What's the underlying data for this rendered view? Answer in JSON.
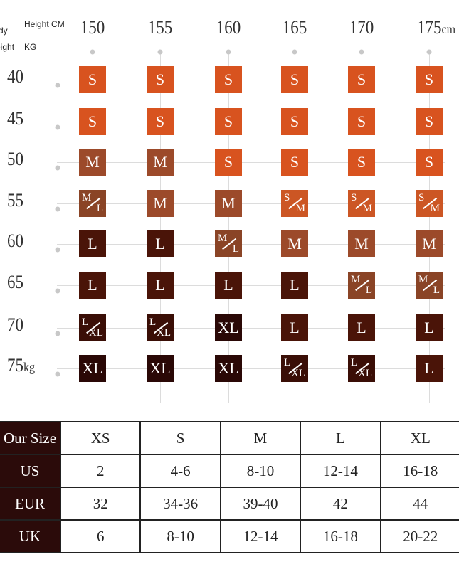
{
  "corner": {
    "body": "dy",
    "weight": "eight",
    "height_cm": "Height CM",
    "weight_kg": "KG"
  },
  "heights": [
    {
      "value": "150",
      "unit": ""
    },
    {
      "value": "155",
      "unit": ""
    },
    {
      "value": "160",
      "unit": ""
    },
    {
      "value": "165",
      "unit": ""
    },
    {
      "value": "170",
      "unit": ""
    },
    {
      "value": "175",
      "unit": "cm"
    }
  ],
  "weights": [
    {
      "value": "40",
      "unit": ""
    },
    {
      "value": "45",
      "unit": ""
    },
    {
      "value": "50",
      "unit": ""
    },
    {
      "value": "55",
      "unit": ""
    },
    {
      "value": "60",
      "unit": ""
    },
    {
      "value": "65",
      "unit": ""
    },
    {
      "value": "70",
      "unit": ""
    },
    {
      "value": "75",
      "unit": "kg"
    }
  ],
  "size_grid": [
    [
      "S",
      "S",
      "S",
      "S",
      "S",
      "S"
    ],
    [
      "S",
      "S",
      "S",
      "S",
      "S",
      "S"
    ],
    [
      "M",
      "M",
      "S",
      "S",
      "S",
      "S"
    ],
    [
      "M/L",
      "M",
      "M",
      "S/M",
      "S/M",
      "S/M"
    ],
    [
      "L",
      "L",
      "M/L",
      "M",
      "M",
      "M"
    ],
    [
      "L",
      "L",
      "L",
      "L",
      "M/L",
      "M/L"
    ],
    [
      "L/XL",
      "L/XL",
      "XL",
      "L",
      "L",
      "L"
    ],
    [
      "XL",
      "XL",
      "XL",
      "L/XL",
      "L/XL",
      "L"
    ]
  ],
  "size_colors": {
    "S": "#d8531f",
    "M": "#9c4a2a",
    "L": "#4a1408",
    "XL": "#2a0806",
    "header": "#2b0b0a"
  },
  "conversion_table": {
    "rows": [
      [
        "Our Size",
        "XS",
        "S",
        "M",
        "L",
        "XL"
      ],
      [
        "US",
        "2",
        "4-6",
        "8-10",
        "12-14",
        "16-18"
      ],
      [
        "EUR",
        "32",
        "34-36",
        "39-40",
        "42",
        "44"
      ],
      [
        "UK",
        "6",
        "8-10",
        "12-14",
        "16-18",
        "20-22"
      ]
    ]
  }
}
